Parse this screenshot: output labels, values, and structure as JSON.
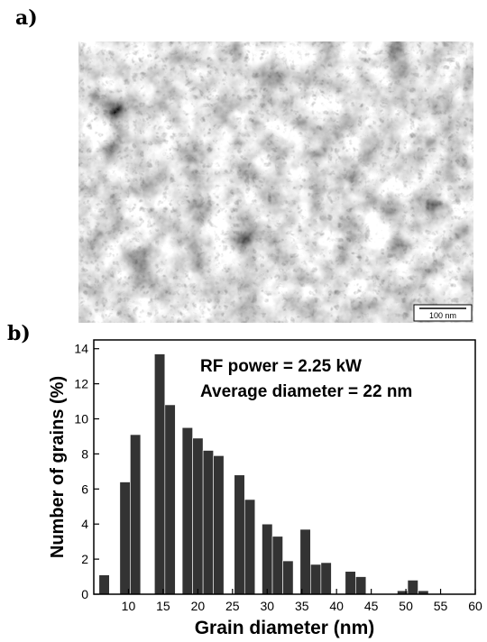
{
  "panel_a": {
    "label": "a)",
    "image_description": "grayscale TEM micrograph",
    "scale_bar": "100 nm"
  },
  "panel_b": {
    "label": "b)"
  },
  "chart_data": {
    "type": "bar",
    "title": "",
    "xlabel": "Grain diameter (nm)",
    "ylabel": "Number of grains (%)",
    "xlim": [
      5,
      60
    ],
    "ylim": [
      0,
      14.5
    ],
    "xticks": [
      10,
      15,
      20,
      25,
      30,
      35,
      40,
      45,
      50,
      55,
      60
    ],
    "yticks": [
      0,
      2,
      4,
      6,
      8,
      10,
      12,
      14
    ],
    "bin_width": 1.5,
    "annotations": [
      "RF power = 2.25 kW",
      "Average diameter = 22 nm"
    ],
    "bar_color": "#333333",
    "bars": [
      {
        "x": 6.5,
        "value": 1.1
      },
      {
        "x": 9.5,
        "value": 6.4
      },
      {
        "x": 11.0,
        "value": 9.1
      },
      {
        "x": 14.5,
        "value": 13.7
      },
      {
        "x": 16.0,
        "value": 10.8
      },
      {
        "x": 18.5,
        "value": 9.5
      },
      {
        "x": 20.0,
        "value": 8.9
      },
      {
        "x": 21.5,
        "value": 8.2
      },
      {
        "x": 23.0,
        "value": 7.9
      },
      {
        "x": 26.0,
        "value": 6.8
      },
      {
        "x": 27.5,
        "value": 5.4
      },
      {
        "x": 30.0,
        "value": 4.0
      },
      {
        "x": 31.5,
        "value": 3.3
      },
      {
        "x": 33.0,
        "value": 1.9
      },
      {
        "x": 35.5,
        "value": 3.7
      },
      {
        "x": 37.0,
        "value": 1.7
      },
      {
        "x": 38.5,
        "value": 1.8
      },
      {
        "x": 42.0,
        "value": 1.3
      },
      {
        "x": 43.5,
        "value": 1.0
      },
      {
        "x": 49.5,
        "value": 0.2
      },
      {
        "x": 51.0,
        "value": 0.8
      },
      {
        "x": 52.5,
        "value": 0.2
      }
    ]
  }
}
